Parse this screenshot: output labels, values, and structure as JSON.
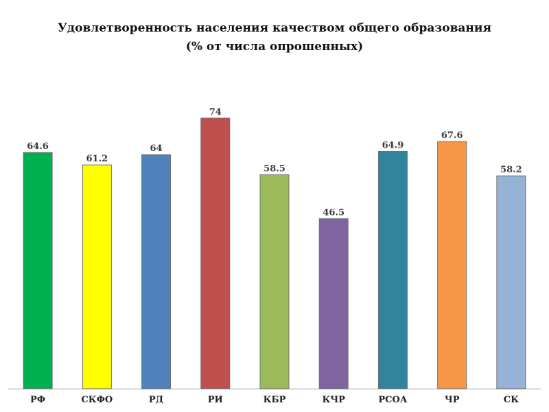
{
  "chart_data": {
    "type": "bar",
    "title": "Удовлетворенность населения качеством общего образования",
    "subtitle": "(% от числа опрошенных)",
    "xlabel": "",
    "ylabel": "",
    "categories": [
      "РФ",
      "СКФО",
      "РД",
      "РИ",
      "КБР",
      "КЧР",
      "РСОА",
      "ЧР",
      "СК"
    ],
    "values": [
      64.6,
      61.2,
      64,
      74,
      58.5,
      46.5,
      64.9,
      67.6,
      58.2
    ],
    "value_labels": [
      "64.6",
      "61.2",
      "64",
      "74",
      "58.5",
      "46.5",
      "64.9",
      "67.6",
      "58.2"
    ],
    "colors": [
      "#00b050",
      "#ffff00",
      "#4f81bd",
      "#c0504d",
      "#9bbb59",
      "#8064a2",
      "#31849b",
      "#f79646",
      "#95b3d7"
    ],
    "ylim": [
      0,
      74
    ],
    "grid": false,
    "legend": "none"
  }
}
